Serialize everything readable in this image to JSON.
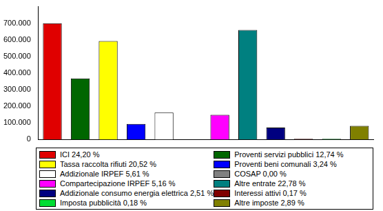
{
  "chart_data": {
    "type": "bar",
    "categories": [
      "ICI 24,20 %",
      "Proventi servizi pubblici 12,74 %",
      "Tassa raccolta rifiuti 20,52 %",
      "Proventi beni comunali 3,24 %",
      "Addizionale IRPEF 5,61 %",
      "COSAP 0,00 %",
      "Compartecipazione IRPEF 5,16 %",
      "Altre entrate 22,78 %",
      "Addizionale consumo energia elettrica 2,51 %",
      "Interessi attivi 0,17 %",
      "Imposta pubblicità 0,18 %",
      "Altre imposte 2,89 %"
    ],
    "values": [
      700000,
      368000,
      593000,
      94000,
      162000,
      0,
      149000,
      659000,
      72000,
      5000,
      5000,
      83000
    ],
    "colors": [
      "#e00000",
      "#006600",
      "#ffff00",
      "#0000ff",
      "#ffffff",
      "#808080",
      "#ff00ff",
      "#008080",
      "#000080",
      "#800000",
      "#00dd33",
      "#808000"
    ],
    "ylim": [
      0,
      800000
    ],
    "yticks": [
      0,
      {
        "value": 100000,
        "label": "100.000"
      },
      {
        "value": 200000,
        "label": "200.000"
      },
      {
        "value": 300000,
        "label": "300.000"
      },
      {
        "value": 400000,
        "label": "400.000"
      },
      {
        "value": 500000,
        "label": "500.000"
      },
      {
        "value": 600000,
        "label": "600.000"
      },
      {
        "value": 700000,
        "label": "700.000"
      }
    ],
    "grid": false,
    "tick_labels": "y",
    "legend": "bottom"
  }
}
